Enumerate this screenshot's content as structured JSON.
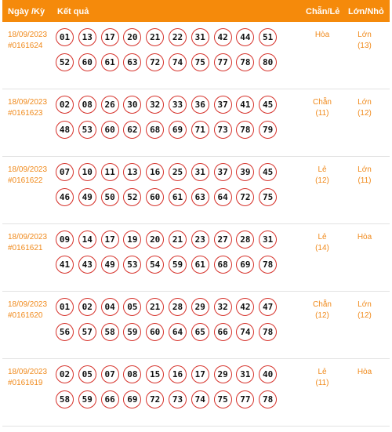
{
  "header": {
    "date_col": "Ngày /Kỳ",
    "result_col": "Kết quả",
    "chanle_col": "Chẵn/Lẻ",
    "lonnho_col": "Lớn/Nhỏ"
  },
  "rows": [
    {
      "date": "18/09/2023",
      "period": "#0161624",
      "numbers": [
        "01",
        "13",
        "17",
        "20",
        "21",
        "22",
        "31",
        "42",
        "44",
        "51",
        "52",
        "60",
        "61",
        "63",
        "72",
        "74",
        "75",
        "77",
        "78",
        "80"
      ],
      "chanle": "Hòa",
      "chanle_count": "",
      "lonnho": "Lớn",
      "lonnho_count": "(13)"
    },
    {
      "date": "18/09/2023",
      "period": "#0161623",
      "numbers": [
        "02",
        "08",
        "26",
        "30",
        "32",
        "33",
        "36",
        "37",
        "41",
        "45",
        "48",
        "53",
        "60",
        "62",
        "68",
        "69",
        "71",
        "73",
        "78",
        "79"
      ],
      "chanle": "Chẵn",
      "chanle_count": "(11)",
      "lonnho": "Lớn",
      "lonnho_count": "(12)"
    },
    {
      "date": "18/09/2023",
      "period": "#0161622",
      "numbers": [
        "07",
        "10",
        "11",
        "13",
        "16",
        "25",
        "31",
        "37",
        "39",
        "45",
        "46",
        "49",
        "50",
        "52",
        "60",
        "61",
        "63",
        "64",
        "72",
        "75"
      ],
      "chanle": "Lẻ",
      "chanle_count": "(12)",
      "lonnho": "Lớn",
      "lonnho_count": "(11)"
    },
    {
      "date": "18/09/2023",
      "period": "#0161621",
      "numbers": [
        "09",
        "14",
        "17",
        "19",
        "20",
        "21",
        "23",
        "27",
        "28",
        "31",
        "41",
        "43",
        "49",
        "53",
        "54",
        "59",
        "61",
        "68",
        "69",
        "78"
      ],
      "chanle": "Lẻ",
      "chanle_count": "(14)",
      "lonnho": "Hòa",
      "lonnho_count": ""
    },
    {
      "date": "18/09/2023",
      "period": "#0161620",
      "numbers": [
        "01",
        "02",
        "04",
        "05",
        "21",
        "28",
        "29",
        "32",
        "42",
        "47",
        "56",
        "57",
        "58",
        "59",
        "60",
        "64",
        "65",
        "66",
        "74",
        "78"
      ],
      "chanle": "Chẵn",
      "chanle_count": "(12)",
      "lonnho": "Lớn",
      "lonnho_count": "(12)"
    },
    {
      "date": "18/09/2023",
      "period": "#0161619",
      "numbers": [
        "02",
        "05",
        "07",
        "08",
        "15",
        "16",
        "17",
        "29",
        "31",
        "40",
        "58",
        "59",
        "66",
        "69",
        "72",
        "73",
        "74",
        "75",
        "77",
        "78"
      ],
      "chanle": "Lẻ",
      "chanle_count": "(11)",
      "lonnho": "Hòa",
      "lonnho_count": ""
    }
  ]
}
